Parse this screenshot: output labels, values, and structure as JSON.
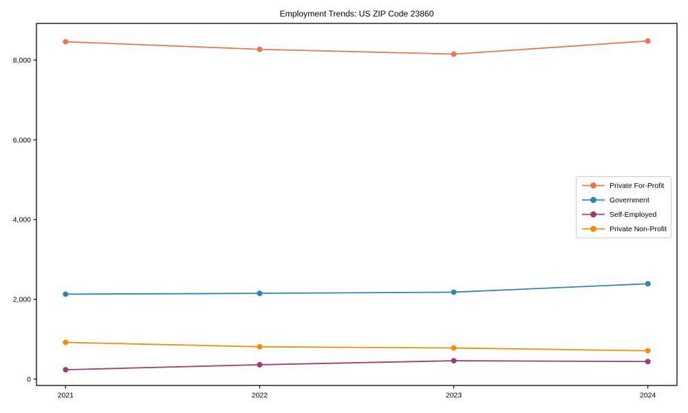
{
  "figure": {
    "background": "#ffffff",
    "axis_color": "#000000",
    "legend_border_color": "#cccccc"
  },
  "chart_data": {
    "type": "line",
    "title": "Employment Trends: US ZIP Code 23860",
    "categories": [
      2021,
      2022,
      2023,
      2024
    ],
    "x_tick_labels": [
      "2021",
      "2022",
      "2023",
      "2024"
    ],
    "series": [
      {
        "name": "Private For-Profit",
        "color": "#E8764B",
        "values": [
          8460,
          8270,
          8150,
          8480
        ]
      },
      {
        "name": "Government",
        "color": "#2E86AB",
        "values": [
          2130,
          2150,
          2180,
          2390
        ]
      },
      {
        "name": "Self-Employed",
        "color": "#A23B72",
        "values": [
          235,
          360,
          460,
          440
        ]
      },
      {
        "name": "Private Non-Profit",
        "color": "#F18F01",
        "values": [
          920,
          810,
          780,
          710
        ]
      }
    ],
    "y_ticks": [
      0,
      2000,
      4000,
      6000,
      8000
    ],
    "y_tick_labels": [
      "0",
      "2,000",
      "4,000",
      "6,000",
      "8,000"
    ],
    "xlim": [
      2020.85,
      2024.15
    ],
    "ylim": [
      -160,
      8920
    ],
    "grid": false,
    "legend_position": "center-right",
    "marker": "circle"
  }
}
